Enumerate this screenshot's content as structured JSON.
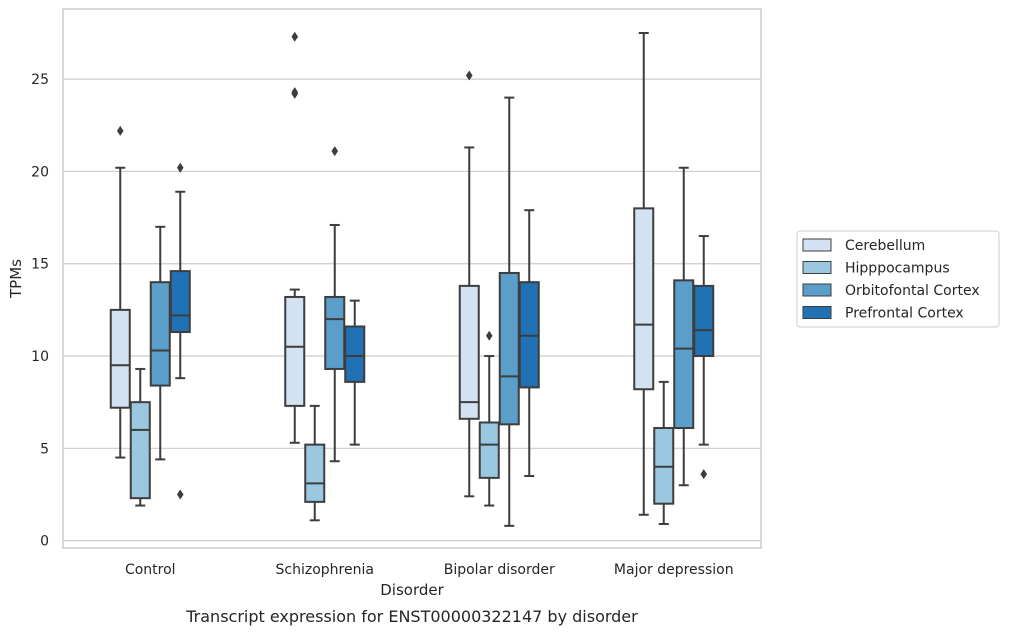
{
  "chart_data": {
    "type": "box",
    "title": "",
    "caption": "Transcript expression for ENST00000322147 by disorder",
    "xlabel": "Disorder",
    "ylabel": "TPMs",
    "ylim": [
      -0.4,
      28.8
    ],
    "yticks": [
      0,
      5,
      10,
      15,
      20,
      25
    ],
    "grid": "horizontal",
    "legend_position": "right",
    "categories": [
      "Control",
      "Schizophrenia",
      "Bipolar disorder",
      "Major depression"
    ],
    "series": [
      {
        "name": "Cerebellum",
        "color": "#d2e2f2",
        "boxes": [
          {
            "whislo": 4.5,
            "q1": 7.2,
            "med": 9.5,
            "q3": 12.5,
            "whishi": 20.2,
            "fliers": [
              22.2
            ]
          },
          {
            "whislo": 5.3,
            "q1": 7.3,
            "med": 10.5,
            "q3": 13.2,
            "whishi": 13.6,
            "fliers": [
              24.2,
              24.3,
              27.3
            ]
          },
          {
            "whislo": 2.4,
            "q1": 6.6,
            "med": 7.5,
            "q3": 13.8,
            "whishi": 21.3,
            "fliers": [
              25.2
            ]
          },
          {
            "whislo": 1.4,
            "q1": 8.2,
            "med": 11.7,
            "q3": 18.0,
            "whishi": 27.5,
            "fliers": []
          }
        ]
      },
      {
        "name": "Hipppocampus",
        "color": "#9ac8e0",
        "boxes": [
          {
            "whislo": 1.9,
            "q1": 2.3,
            "med": 6.0,
            "q3": 7.5,
            "whishi": 9.3,
            "fliers": []
          },
          {
            "whislo": 1.1,
            "q1": 2.1,
            "med": 3.1,
            "q3": 5.2,
            "whishi": 7.3,
            "fliers": []
          },
          {
            "whislo": 1.9,
            "q1": 3.4,
            "med": 5.2,
            "q3": 6.4,
            "whishi": 10.0,
            "fliers": [
              11.1
            ]
          },
          {
            "whislo": 0.9,
            "q1": 2.0,
            "med": 4.0,
            "q3": 6.1,
            "whishi": 8.6,
            "fliers": []
          }
        ]
      },
      {
        "name": "Orbitofontal Cortex",
        "color": "#5a9ec9",
        "boxes": [
          {
            "whislo": 4.4,
            "q1": 8.4,
            "med": 10.3,
            "q3": 14.0,
            "whishi": 17.0,
            "fliers": []
          },
          {
            "whislo": 4.3,
            "q1": 9.3,
            "med": 12.0,
            "q3": 13.2,
            "whishi": 17.1,
            "fliers": [
              21.1
            ]
          },
          {
            "whislo": 0.8,
            "q1": 6.3,
            "med": 8.9,
            "q3": 14.5,
            "whishi": 24.0,
            "fliers": []
          },
          {
            "whislo": 3.0,
            "q1": 6.1,
            "med": 10.4,
            "q3": 14.1,
            "whishi": 20.2,
            "fliers": []
          }
        ]
      },
      {
        "name": "Prefrontal Cortex",
        "color": "#2171b5",
        "boxes": [
          {
            "whislo": 8.8,
            "q1": 11.3,
            "med": 12.2,
            "q3": 14.6,
            "whishi": 18.9,
            "fliers": [
              20.2,
              2.5
            ]
          },
          {
            "whislo": 5.2,
            "q1": 8.6,
            "med": 10.0,
            "q3": 11.6,
            "whishi": 13.0,
            "fliers": []
          },
          {
            "whislo": 3.5,
            "q1": 8.3,
            "med": 11.1,
            "q3": 14.0,
            "whishi": 17.9,
            "fliers": []
          },
          {
            "whislo": 5.2,
            "q1": 10.0,
            "med": 11.4,
            "q3": 13.8,
            "whishi": 16.5,
            "fliers": [
              3.6
            ]
          }
        ]
      }
    ]
  }
}
